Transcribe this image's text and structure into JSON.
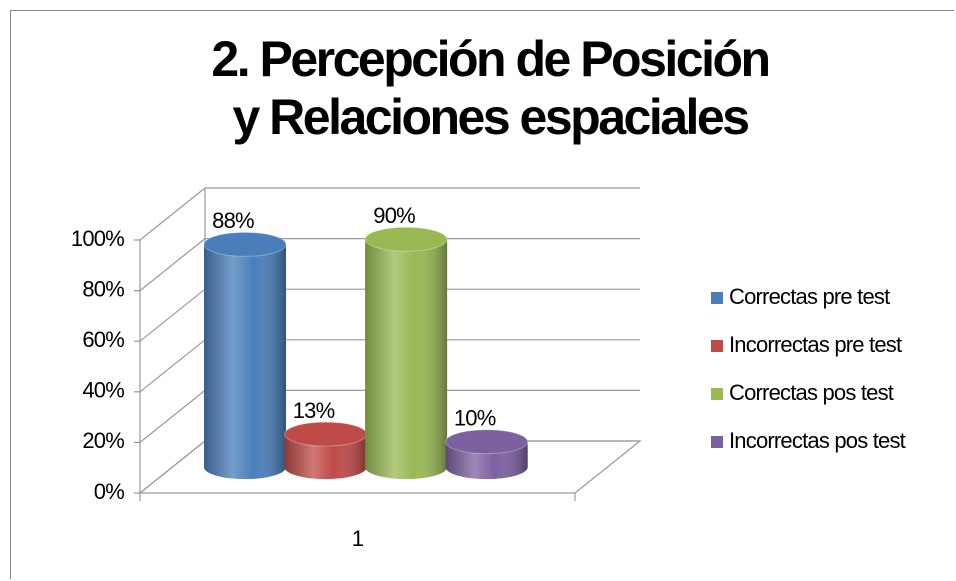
{
  "chart_data": {
    "type": "bar3d",
    "title": "2. Percepción de Posición y Relaciones espaciales",
    "categories": [
      "1"
    ],
    "series": [
      {
        "name": "Correctas pre test",
        "color": "#4a7ebb",
        "values": [
          88
        ],
        "value_labels": [
          "88%"
        ]
      },
      {
        "name": "Incorrectas pre test",
        "color": "#be4b48",
        "values": [
          13
        ],
        "value_labels": [
          "13%"
        ]
      },
      {
        "name": "Correctas pos test",
        "color": "#98b954",
        "values": [
          90
        ],
        "value_labels": [
          "90%"
        ]
      },
      {
        "name": "Incorrectas pos test",
        "color": "#7d60a0",
        "values": [
          10
        ],
        "value_labels": [
          "10%"
        ]
      }
    ],
    "ylim": [
      0,
      100
    ],
    "yticks": [
      {
        "value": 0,
        "label": "0%"
      },
      {
        "value": 20,
        "label": "20%"
      },
      {
        "value": 40,
        "label": "40%"
      },
      {
        "value": 60,
        "label": "60%"
      },
      {
        "value": 80,
        "label": "80%"
      },
      {
        "value": 100,
        "label": "100%"
      }
    ],
    "grid": true,
    "legend": "right"
  }
}
